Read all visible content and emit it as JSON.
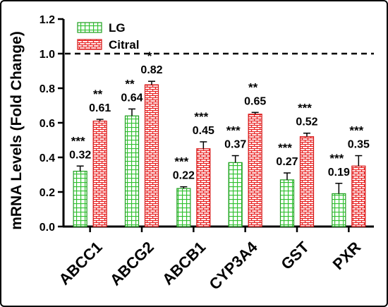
{
  "chart_data": {
    "type": "bar",
    "ylabel": "mRNA Levels (Fold Change)",
    "ylim": [
      0,
      1.2
    ],
    "yticks": [
      "0.0",
      "0.2",
      "0.4",
      "0.6",
      "0.8",
      "1.0",
      "1.2"
    ],
    "reference_line": 1.0,
    "legend_position": "top-left",
    "grid": false,
    "categories": [
      "ABCC1",
      "ABCG2",
      "ABCB1",
      "CYP3A4",
      "GST",
      "PXR"
    ],
    "series": [
      {
        "name": "LG",
        "color": "#33cc33",
        "pattern": "grid",
        "values": [
          0.32,
          0.64,
          0.22,
          0.37,
          0.27,
          0.19
        ],
        "errors": [
          0.03,
          0.04,
          0.01,
          0.04,
          0.04,
          0.06
        ],
        "labels": [
          "0.32",
          "0.64",
          "0.22",
          "0.37",
          "0.27",
          "0.19"
        ],
        "significance": [
          "***",
          "**",
          "***",
          "***",
          "***",
          "***"
        ]
      },
      {
        "name": "Citral",
        "color": "#ee2222",
        "pattern": "brick",
        "values": [
          0.61,
          0.82,
          0.45,
          0.65,
          0.52,
          0.35
        ],
        "errors": [
          0.01,
          0.02,
          0.04,
          0.01,
          0.02,
          0.06
        ],
        "labels": [
          "0.61",
          "0.82",
          "0.45",
          "0.65",
          "0.52",
          "0.35"
        ],
        "significance": [
          "**",
          "*",
          "***",
          "**",
          "***",
          "***"
        ]
      }
    ]
  }
}
